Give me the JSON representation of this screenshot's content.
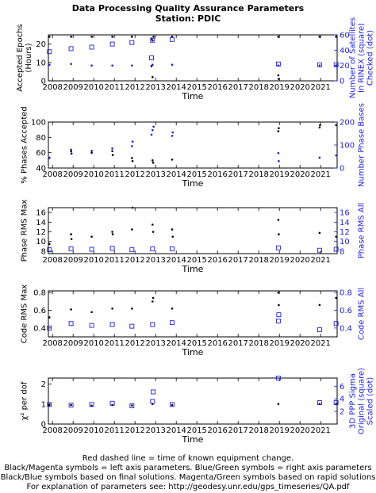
{
  "title": "Data Processing Quality Assurance Parameters",
  "subtitle": "Station: PDIC",
  "footer": [
    "Red dashed line = time of known equipment change.",
    "Black/Magenta symbols = left axis parameters. Blue/Green symbols = right axis parameters",
    "Black/Blue symbols based on final solutions.  Magenta/Green symbols based on rapid solutions",
    "For explanation of parameters see: http://geodesy.unr.edu/gps_timeseries/QA.pdf"
  ],
  "colors": {
    "left": "#000000",
    "right": "#1f1fd6"
  },
  "chart_data": [
    {
      "type": "scatter",
      "xlabel": "Time",
      "xlim": [
        2007.8,
        2021.8
      ],
      "xticks": [
        2008,
        2009,
        2010,
        2011,
        2012,
        2013,
        2014,
        2015,
        2016,
        2017,
        2018,
        2019,
        2020,
        2021
      ],
      "left": {
        "label": "Accepted Epochs\n(Hours)",
        "lim": [
          0,
          25
        ],
        "ticks": [
          0,
          10,
          20
        ]
      },
      "right": {
        "label": "Number of Satellites\nIn RINEX (square)\nChecked (dot)",
        "lim": [
          0,
          60
        ],
        "ticks": [
          0,
          20,
          40,
          60
        ]
      },
      "series": [
        {
          "axis": "left",
          "marker": "dot",
          "x": [
            2007.85,
            2008.9,
            2009.9,
            2010.9,
            2011.85,
            2012.8,
            2012.85,
            2012.9,
            2013.8,
            2018.95,
            2020.95,
            2021.75
          ],
          "y": [
            24,
            24,
            24,
            24,
            24,
            23,
            22,
            24,
            24,
            24,
            24,
            24
          ]
        },
        {
          "axis": "left",
          "marker": "dot",
          "x": [
            2012.8,
            2012.85,
            2018.95,
            2018.97
          ],
          "y": [
            8,
            2,
            3,
            1
          ]
        },
        {
          "axis": "right",
          "marker": "dot",
          "x": [
            2007.85,
            2008.9,
            2009.9,
            2010.9,
            2011.85,
            2012.85,
            2013.8,
            2018.95,
            2020.95,
            2021.75
          ],
          "y": [
            21,
            22,
            20,
            20,
            20,
            21,
            21,
            20,
            20,
            20
          ]
        },
        {
          "axis": "right",
          "marker": "square",
          "x": [
            2007.85,
            2008.9,
            2009.9,
            2010.9,
            2011.85,
            2012.8,
            2012.85,
            2013.8,
            2018.95,
            2020.95,
            2021.75
          ],
          "y": [
            38,
            42,
            44,
            48,
            50,
            30,
            53,
            54,
            22,
            21,
            21
          ]
        }
      ]
    },
    {
      "type": "scatter",
      "xlabel": "Time",
      "xlim": [
        2007.8,
        2021.8
      ],
      "xticks": [
        2008,
        2009,
        2010,
        2011,
        2012,
        2013,
        2014,
        2015,
        2016,
        2017,
        2018,
        2019,
        2020,
        2021
      ],
      "left": {
        "label": "% Phases Accepted",
        "lim": [
          40,
          100
        ],
        "ticks": [
          40,
          60,
          80,
          100
        ]
      },
      "right": {
        "label": "Number Phase Bases",
        "lim": [
          0,
          200
        ],
        "ticks": [
          0,
          100,
          200
        ]
      },
      "series": [
        {
          "axis": "left",
          "marker": "dot",
          "x": [
            2007.85,
            2008.9,
            2008.92,
            2009.9,
            2010.9,
            2010.92,
            2011.85,
            2011.88,
            2012.85,
            2012.88,
            2013.8,
            2018.95,
            2018.97,
            2020.95,
            2020.97,
            2021.75
          ],
          "y": [
            53,
            62,
            59,
            60,
            62,
            57,
            53,
            49,
            50,
            47,
            51,
            88,
            92,
            93,
            96,
            96
          ]
        },
        {
          "axis": "right",
          "marker": "dot",
          "x": [
            2007.85,
            2008.9,
            2009.9,
            2010.9,
            2011.85,
            2011.88,
            2012.8,
            2012.85,
            2012.9,
            2013.8,
            2013.83,
            2018.95,
            2018.97,
            2020.95,
            2021.75
          ],
          "y": [
            45,
            80,
            75,
            85,
            95,
            115,
            145,
            165,
            180,
            140,
            155,
            65,
            30,
            45,
            55
          ]
        }
      ]
    },
    {
      "type": "scatter",
      "xlabel": "Time",
      "xlim": [
        2007.8,
        2021.8
      ],
      "xticks": [
        2008,
        2009,
        2010,
        2011,
        2012,
        2013,
        2014,
        2015,
        2016,
        2017,
        2018,
        2019,
        2020,
        2021
      ],
      "left": {
        "label": "Phase RMS Max",
        "lim": [
          7.5,
          17
        ],
        "ticks": [
          8,
          10,
          12,
          14,
          16
        ]
      },
      "right": {
        "label": "Phase RMS All",
        "lim": [
          7.5,
          17
        ],
        "ticks": [
          8,
          10,
          12,
          14,
          16
        ]
      },
      "series": [
        {
          "axis": "left",
          "marker": "dot",
          "x": [
            2007.85,
            2008.9,
            2008.92,
            2009.9,
            2010.9,
            2010.92,
            2011.85,
            2011.88,
            2012.85,
            2012.88,
            2013.8,
            2013.83,
            2018.95,
            2018.97,
            2020.95,
            2021.75
          ],
          "y": [
            9.5,
            11.5,
            10.5,
            11,
            12,
            11.5,
            12.5,
            17,
            13.5,
            12,
            12.5,
            11,
            14.5,
            11.5,
            11.8,
            11
          ]
        },
        {
          "axis": "right",
          "marker": "square",
          "x": [
            2007.85,
            2008.9,
            2009.9,
            2010.9,
            2011.85,
            2012.85,
            2013.8,
            2018.95,
            2020.95,
            2021.75
          ],
          "y": [
            8.3,
            8.5,
            8.4,
            8.6,
            8.3,
            8.5,
            8.5,
            8.7,
            8.2,
            8.4
          ]
        }
      ]
    },
    {
      "type": "scatter",
      "xlabel": "Time",
      "xlim": [
        2007.8,
        2021.8
      ],
      "xticks": [
        2008,
        2009,
        2010,
        2011,
        2012,
        2013,
        2014,
        2015,
        2016,
        2017,
        2018,
        2019,
        2020,
        2021
      ],
      "left": {
        "label": "Code RMS Max",
        "lim": [
          0.3,
          0.82
        ],
        "ticks": [
          0.4,
          0.6,
          0.8
        ]
      },
      "right": {
        "label": "Code RMS All",
        "lim": [
          0.3,
          0.82
        ],
        "ticks": [
          0.4,
          0.6,
          0.8
        ]
      },
      "series": [
        {
          "axis": "left",
          "marker": "dot",
          "x": [
            2007.85,
            2008.9,
            2009.9,
            2010.9,
            2011.85,
            2012.85,
            2012.88,
            2013.8,
            2018.95,
            2018.97,
            2020.95,
            2021.75
          ],
          "y": [
            0.52,
            0.61,
            0.58,
            0.62,
            0.62,
            0.7,
            0.74,
            0.62,
            0.8,
            0.66,
            0.66,
            0.74
          ]
        },
        {
          "axis": "right",
          "marker": "square",
          "x": [
            2007.85,
            2008.9,
            2009.9,
            2010.9,
            2011.85,
            2012.85,
            2013.8,
            2018.95,
            2018.97,
            2020.95,
            2021.75
          ],
          "y": [
            0.4,
            0.45,
            0.43,
            0.44,
            0.42,
            0.44,
            0.46,
            0.48,
            0.55,
            0.38,
            0.45
          ]
        }
      ]
    },
    {
      "type": "scatter",
      "xlabel": "Time",
      "xlim": [
        2007.8,
        2021.8
      ],
      "xticks": [
        2008,
        2009,
        2010,
        2011,
        2012,
        2013,
        2014,
        2015,
        2016,
        2017,
        2018,
        2019,
        2020,
        2021
      ],
      "left": {
        "label": "χ² per dof",
        "lim": [
          0,
          2.3
        ],
        "ticks": [
          0,
          1,
          2
        ]
      },
      "right": {
        "label": "3D PPP Sigma\nOriginal (square)\nScaled (dot)",
        "lim": [
          0,
          7.3
        ],
        "ticks": [
          2,
          4,
          6
        ]
      },
      "series": [
        {
          "axis": "left",
          "marker": "dot",
          "x": [
            2007.85,
            2008.9,
            2009.9,
            2010.9,
            2011.85,
            2012.85,
            2013.8,
            2018.95,
            2020.95,
            2021.75
          ],
          "y": [
            0.95,
            0.95,
            0.92,
            0.95,
            0.93,
            1.0,
            0.95,
            1.0,
            1.0,
            1.0
          ]
        },
        {
          "axis": "right",
          "marker": "square",
          "x": [
            2007.85,
            2008.9,
            2009.9,
            2010.9,
            2011.85,
            2012.85,
            2012.88,
            2013.8,
            2018.95,
            2020.95,
            2021.75
          ],
          "y": [
            3.1,
            3.0,
            3.1,
            3.3,
            2.9,
            3.6,
            5.1,
            3.1,
            7.3,
            3.4,
            3.4
          ]
        }
      ]
    }
  ]
}
